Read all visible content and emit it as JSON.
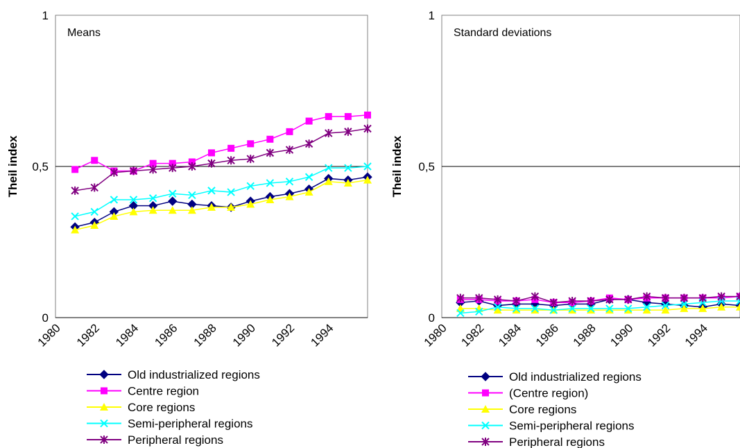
{
  "chart_data": [
    {
      "type": "line",
      "title": "Means",
      "ylabel": "Theil index",
      "ylim": [
        0,
        1
      ],
      "yticks": [
        "0",
        "0,5",
        "1"
      ],
      "x": [
        1981,
        1982,
        1983,
        1984,
        1985,
        1986,
        1987,
        1988,
        1989,
        1990,
        1991,
        1992,
        1993,
        1994,
        1995,
        1996
      ],
      "xticks": [
        "1980",
        "1982",
        "1984",
        "1986",
        "1988",
        "1990",
        "1992",
        "1994"
      ],
      "series": [
        {
          "name": "Old industrialized regions",
          "color": "#000080",
          "marker": "diamond",
          "values": [
            0.3,
            0.315,
            0.35,
            0.37,
            0.37,
            0.385,
            0.375,
            0.37,
            0.365,
            0.385,
            0.4,
            0.41,
            0.425,
            0.46,
            0.455,
            0.465
          ]
        },
        {
          "name": "Centre region",
          "color": "#ff00ff",
          "marker": "square",
          "values": [
            0.49,
            0.52,
            0.485,
            0.485,
            0.51,
            0.51,
            0.515,
            0.545,
            0.56,
            0.575,
            0.59,
            0.615,
            0.65,
            0.665,
            0.665,
            0.67
          ]
        },
        {
          "name": "Core regions",
          "color": "#ffff00",
          "marker": "triangle",
          "values": [
            0.29,
            0.305,
            0.335,
            0.35,
            0.355,
            0.355,
            0.355,
            0.365,
            0.365,
            0.375,
            0.39,
            0.4,
            0.415,
            0.45,
            0.445,
            0.455
          ]
        },
        {
          "name": "Semi-peripheral regions",
          "color": "#00ffff",
          "marker": "x",
          "values": [
            0.335,
            0.35,
            0.39,
            0.39,
            0.395,
            0.41,
            0.405,
            0.42,
            0.415,
            0.435,
            0.445,
            0.45,
            0.465,
            0.495,
            0.495,
            0.5
          ]
        },
        {
          "name": "Peripheral regions",
          "color": "#800080",
          "marker": "star",
          "values": [
            0.42,
            0.43,
            0.48,
            0.485,
            0.49,
            0.495,
            0.5,
            0.51,
            0.52,
            0.525,
            0.545,
            0.555,
            0.575,
            0.61,
            0.615,
            0.625
          ]
        }
      ]
    },
    {
      "type": "line",
      "title": "Standard deviations",
      "ylabel": "Theil index",
      "ylim": [
        0,
        1
      ],
      "yticks": [
        "0",
        "0,5",
        "1"
      ],
      "x": [
        1981,
        1982,
        1983,
        1984,
        1985,
        1986,
        1987,
        1988,
        1989,
        1990,
        1991,
        1992,
        1993,
        1994,
        1995,
        1996
      ],
      "xticks": [
        "1980",
        "1982",
        "1984",
        "1986",
        "1988",
        "1990",
        "1992",
        "1994"
      ],
      "series": [
        {
          "name": "Old industrialized regions",
          "color": "#000080",
          "marker": "diamond",
          "values": [
            0.05,
            0.055,
            0.04,
            0.045,
            0.045,
            0.04,
            0.045,
            0.045,
            0.06,
            0.06,
            0.05,
            0.045,
            0.04,
            0.035,
            0.045,
            0.04
          ]
        },
        {
          "name": "(Centre region)",
          "color": "#ff00ff",
          "marker": "square",
          "values": [
            0.06,
            0.06,
            0.055,
            0.055,
            0.06,
            0.05,
            0.05,
            0.055,
            0.065,
            0.06,
            0.065,
            0.065,
            0.065,
            0.065,
            0.065,
            0.07
          ]
        },
        {
          "name": "Core regions",
          "color": "#ffff00",
          "marker": "triangle",
          "values": [
            0.03,
            0.03,
            0.025,
            0.025,
            0.025,
            0.025,
            0.025,
            0.025,
            0.025,
            0.025,
            0.025,
            0.025,
            0.03,
            0.03,
            0.035,
            0.035
          ]
        },
        {
          "name": "Semi-peripheral regions",
          "color": "#00ffff",
          "marker": "x",
          "values": [
            0.015,
            0.02,
            0.035,
            0.03,
            0.03,
            0.025,
            0.03,
            0.03,
            0.03,
            0.03,
            0.035,
            0.04,
            0.045,
            0.05,
            0.055,
            0.055
          ]
        },
        {
          "name": "Peripheral regions",
          "color": "#800080",
          "marker": "star",
          "values": [
            0.065,
            0.065,
            0.06,
            0.055,
            0.07,
            0.05,
            0.055,
            0.055,
            0.06,
            0.06,
            0.07,
            0.065,
            0.065,
            0.065,
            0.07,
            0.07
          ]
        }
      ]
    }
  ]
}
